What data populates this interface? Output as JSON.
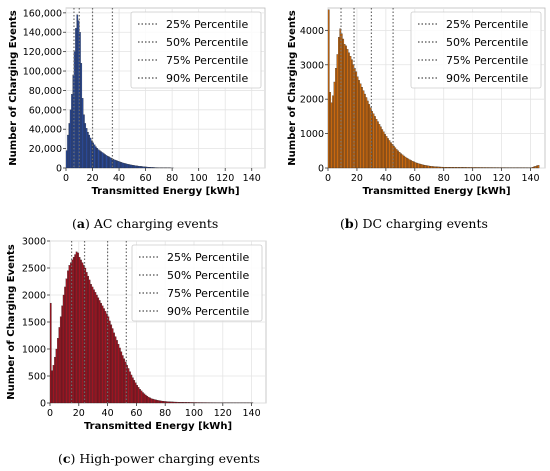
{
  "chart_data": [
    {
      "type": "bar",
      "caption_letter": "a",
      "caption_text": "AC charging events",
      "xlabel": "Transmitted Energy [kWh]",
      "ylabel": "Number of Charging Events",
      "xlim": [
        0,
        150
      ],
      "ylim": [
        0,
        165000
      ],
      "xticks": [
        "0",
        "20",
        "40",
        "60",
        "80",
        "100",
        "120",
        "140"
      ],
      "yticks": [
        "0",
        "20,000",
        "40,000",
        "60,000",
        "80,000",
        "100,000",
        "120,000",
        "140,000",
        "160,000"
      ],
      "ytick_values": [
        0,
        20000,
        40000,
        60000,
        80000,
        100000,
        120000,
        140000,
        160000
      ],
      "xtick_values": [
        0,
        20,
        40,
        60,
        80,
        100,
        120,
        140
      ],
      "color": "#2a4a9a",
      "grid": true,
      "legend_position": "top-right",
      "percentiles": [
        {
          "label": "25% Percentile",
          "value": 6
        },
        {
          "label": "50% Percentile",
          "value": 10
        },
        {
          "label": "75% Percentile",
          "value": 20
        },
        {
          "label": "90% Percentile",
          "value": 35
        }
      ],
      "bins": [
        {
          "x": 0,
          "y": 18000
        },
        {
          "x": 1,
          "y": 34000
        },
        {
          "x": 2,
          "y": 46000
        },
        {
          "x": 3,
          "y": 60000
        },
        {
          "x": 4,
          "y": 76000
        },
        {
          "x": 5,
          "y": 96000
        },
        {
          "x": 6,
          "y": 120000
        },
        {
          "x": 7,
          "y": 144000
        },
        {
          "x": 8,
          "y": 158000
        },
        {
          "x": 9,
          "y": 152000
        },
        {
          "x": 10,
          "y": 140000
        },
        {
          "x": 11,
          "y": 108000
        },
        {
          "x": 12,
          "y": 72000
        },
        {
          "x": 13,
          "y": 55000
        },
        {
          "x": 14,
          "y": 46000
        },
        {
          "x": 15,
          "y": 41000
        },
        {
          "x": 16,
          "y": 37000
        },
        {
          "x": 17,
          "y": 34000
        },
        {
          "x": 18,
          "y": 31000
        },
        {
          "x": 19,
          "y": 28000
        },
        {
          "x": 20,
          "y": 26000
        },
        {
          "x": 22,
          "y": 22000
        },
        {
          "x": 24,
          "y": 19000
        },
        {
          "x": 26,
          "y": 17000
        },
        {
          "x": 28,
          "y": 15000
        },
        {
          "x": 30,
          "y": 13000
        },
        {
          "x": 32,
          "y": 11500
        },
        {
          "x": 34,
          "y": 10000
        },
        {
          "x": 36,
          "y": 8500
        },
        {
          "x": 38,
          "y": 7500
        },
        {
          "x": 40,
          "y": 6500
        },
        {
          "x": 42,
          "y": 5500
        },
        {
          "x": 44,
          "y": 4700
        },
        {
          "x": 46,
          "y": 4000
        },
        {
          "x": 48,
          "y": 3400
        },
        {
          "x": 50,
          "y": 2900
        },
        {
          "x": 52,
          "y": 2400
        },
        {
          "x": 54,
          "y": 2000
        },
        {
          "x": 56,
          "y": 1700
        },
        {
          "x": 58,
          "y": 1400
        },
        {
          "x": 60,
          "y": 1100
        },
        {
          "x": 62,
          "y": 900
        },
        {
          "x": 64,
          "y": 700
        },
        {
          "x": 66,
          "y": 550
        },
        {
          "x": 68,
          "y": 420
        },
        {
          "x": 70,
          "y": 320
        },
        {
          "x": 72,
          "y": 250
        },
        {
          "x": 74,
          "y": 200
        },
        {
          "x": 76,
          "y": 160
        },
        {
          "x": 78,
          "y": 130
        },
        {
          "x": 80,
          "y": 100
        }
      ],
      "bin_width": 1
    },
    {
      "type": "bar",
      "caption_letter": "b",
      "caption_text": "DC charging events",
      "xlabel": "Transmitted Energy [kWh]",
      "ylabel": "Number of Charging Events",
      "xlim": [
        0,
        150
      ],
      "ylim": [
        0,
        4650
      ],
      "xticks": [
        "0",
        "20",
        "40",
        "60",
        "80",
        "100",
        "120",
        "140"
      ],
      "yticks": [
        "0",
        "1000",
        "2000",
        "3000",
        "4000"
      ],
      "ytick_values": [
        0,
        1000,
        2000,
        3000,
        4000
      ],
      "xtick_values": [
        0,
        20,
        40,
        60,
        80,
        100,
        120,
        140
      ],
      "color": "#c8680f",
      "grid": true,
      "legend_position": "top-right",
      "percentiles": [
        {
          "label": "25% Percentile",
          "value": 9
        },
        {
          "label": "50% Percentile",
          "value": 18
        },
        {
          "label": "75% Percentile",
          "value": 30
        },
        {
          "label": "90% Percentile",
          "value": 45
        }
      ],
      "bins": [
        {
          "x": 0,
          "y": 4600
        },
        {
          "x": 1,
          "y": 2200
        },
        {
          "x": 2,
          "y": 1900
        },
        {
          "x": 3,
          "y": 2100
        },
        {
          "x": 4,
          "y": 2500
        },
        {
          "x": 5,
          "y": 2900
        },
        {
          "x": 6,
          "y": 3300
        },
        {
          "x": 7,
          "y": 3800
        },
        {
          "x": 8,
          "y": 4050
        },
        {
          "x": 9,
          "y": 3900
        },
        {
          "x": 10,
          "y": 3750
        },
        {
          "x": 11,
          "y": 3600
        },
        {
          "x": 12,
          "y": 3550
        },
        {
          "x": 13,
          "y": 3450
        },
        {
          "x": 14,
          "y": 3350
        },
        {
          "x": 15,
          "y": 3250
        },
        {
          "x": 16,
          "y": 3150
        },
        {
          "x": 17,
          "y": 3000
        },
        {
          "x": 18,
          "y": 2900
        },
        {
          "x": 19,
          "y": 2800
        },
        {
          "x": 20,
          "y": 2650
        },
        {
          "x": 21,
          "y": 2550
        },
        {
          "x": 22,
          "y": 2450
        },
        {
          "x": 23,
          "y": 2350
        },
        {
          "x": 24,
          "y": 2250
        },
        {
          "x": 25,
          "y": 2150
        },
        {
          "x": 26,
          "y": 2050
        },
        {
          "x": 27,
          "y": 1950
        },
        {
          "x": 28,
          "y": 1850
        },
        {
          "x": 29,
          "y": 1750
        },
        {
          "x": 30,
          "y": 1650
        },
        {
          "x": 31,
          "y": 1580
        },
        {
          "x": 32,
          "y": 1500
        },
        {
          "x": 33,
          "y": 1420
        },
        {
          "x": 34,
          "y": 1350
        },
        {
          "x": 35,
          "y": 1270
        },
        {
          "x": 36,
          "y": 1200
        },
        {
          "x": 37,
          "y": 1120
        },
        {
          "x": 38,
          "y": 1050
        },
        {
          "x": 39,
          "y": 980
        },
        {
          "x": 40,
          "y": 920
        },
        {
          "x": 41,
          "y": 860
        },
        {
          "x": 42,
          "y": 800
        },
        {
          "x": 43,
          "y": 740
        },
        {
          "x": 44,
          "y": 690
        },
        {
          "x": 45,
          "y": 640
        },
        {
          "x": 46,
          "y": 590
        },
        {
          "x": 47,
          "y": 540
        },
        {
          "x": 48,
          "y": 500
        },
        {
          "x": 49,
          "y": 460
        },
        {
          "x": 50,
          "y": 420
        },
        {
          "x": 52,
          "y": 350
        },
        {
          "x": 54,
          "y": 290
        },
        {
          "x": 56,
          "y": 240
        },
        {
          "x": 58,
          "y": 200
        },
        {
          "x": 60,
          "y": 160
        },
        {
          "x": 62,
          "y": 130
        },
        {
          "x": 64,
          "y": 105
        },
        {
          "x": 66,
          "y": 85
        },
        {
          "x": 68,
          "y": 70
        },
        {
          "x": 70,
          "y": 55
        },
        {
          "x": 72,
          "y": 45
        },
        {
          "x": 74,
          "y": 38
        },
        {
          "x": 76,
          "y": 32
        },
        {
          "x": 78,
          "y": 28
        },
        {
          "x": 80,
          "y": 25
        },
        {
          "x": 85,
          "y": 22
        },
        {
          "x": 90,
          "y": 20
        },
        {
          "x": 95,
          "y": 18
        },
        {
          "x": 100,
          "y": 17
        },
        {
          "x": 105,
          "y": 16
        },
        {
          "x": 110,
          "y": 15
        },
        {
          "x": 115,
          "y": 14
        },
        {
          "x": 120,
          "y": 13
        },
        {
          "x": 125,
          "y": 12
        },
        {
          "x": 130,
          "y": 12
        },
        {
          "x": 135,
          "y": 12
        },
        {
          "x": 140,
          "y": 11
        },
        {
          "x": 145,
          "y": 80
        }
      ],
      "bin_width": 1
    },
    {
      "type": "bar",
      "caption_letter": "c",
      "caption_text": "High-power charging events",
      "xlabel": "Transmitted Energy [kWh]",
      "ylabel": "Number of Charging Events",
      "xlim": [
        0,
        150
      ],
      "ylim": [
        0,
        3000
      ],
      "xticks": [
        "0",
        "20",
        "40",
        "60",
        "80",
        "100",
        "120",
        "140"
      ],
      "yticks": [
        "0",
        "500",
        "1000",
        "1500",
        "2000",
        "2500",
        "3000"
      ],
      "ytick_values": [
        0,
        500,
        1000,
        1500,
        2000,
        2500,
        3000
      ],
      "xtick_values": [
        0,
        20,
        40,
        60,
        80,
        100,
        120,
        140
      ],
      "color": "#a01422",
      "grid": true,
      "legend_position": "top-right",
      "percentiles": [
        {
          "label": "25% Percentile",
          "value": 15
        },
        {
          "label": "50% Percentile",
          "value": 24
        },
        {
          "label": "75% Percentile",
          "value": 40
        },
        {
          "label": "90% Percentile",
          "value": 53
        }
      ],
      "bins": [
        {
          "x": 0,
          "y": 1850
        },
        {
          "x": 1,
          "y": 600
        },
        {
          "x": 2,
          "y": 700
        },
        {
          "x": 3,
          "y": 850
        },
        {
          "x": 4,
          "y": 1000
        },
        {
          "x": 5,
          "y": 1200
        },
        {
          "x": 6,
          "y": 1400
        },
        {
          "x": 7,
          "y": 1600
        },
        {
          "x": 8,
          "y": 1800
        },
        {
          "x": 9,
          "y": 2000
        },
        {
          "x": 10,
          "y": 2150
        },
        {
          "x": 11,
          "y": 2300
        },
        {
          "x": 12,
          "y": 2450
        },
        {
          "x": 13,
          "y": 2550
        },
        {
          "x": 14,
          "y": 2600
        },
        {
          "x": 15,
          "y": 2650
        },
        {
          "x": 16,
          "y": 2700
        },
        {
          "x": 17,
          "y": 2750
        },
        {
          "x": 18,
          "y": 2800
        },
        {
          "x": 19,
          "y": 2780
        },
        {
          "x": 20,
          "y": 2700
        },
        {
          "x": 21,
          "y": 2650
        },
        {
          "x": 22,
          "y": 2600
        },
        {
          "x": 23,
          "y": 2550
        },
        {
          "x": 24,
          "y": 2500
        },
        {
          "x": 25,
          "y": 2420
        },
        {
          "x": 26,
          "y": 2350
        },
        {
          "x": 27,
          "y": 2280
        },
        {
          "x": 28,
          "y": 2200
        },
        {
          "x": 29,
          "y": 2150
        },
        {
          "x": 30,
          "y": 2100
        },
        {
          "x": 31,
          "y": 2050
        },
        {
          "x": 32,
          "y": 2000
        },
        {
          "x": 33,
          "y": 1950
        },
        {
          "x": 34,
          "y": 1900
        },
        {
          "x": 35,
          "y": 1850
        },
        {
          "x": 36,
          "y": 1800
        },
        {
          "x": 37,
          "y": 1750
        },
        {
          "x": 38,
          "y": 1700
        },
        {
          "x": 39,
          "y": 1650
        },
        {
          "x": 40,
          "y": 1600
        },
        {
          "x": 41,
          "y": 1520
        },
        {
          "x": 42,
          "y": 1450
        },
        {
          "x": 43,
          "y": 1380
        },
        {
          "x": 44,
          "y": 1300
        },
        {
          "x": 45,
          "y": 1230
        },
        {
          "x": 46,
          "y": 1160
        },
        {
          "x": 47,
          "y": 1090
        },
        {
          "x": 48,
          "y": 1020
        },
        {
          "x": 49,
          "y": 950
        },
        {
          "x": 50,
          "y": 880
        },
        {
          "x": 51,
          "y": 820
        },
        {
          "x": 52,
          "y": 760
        },
        {
          "x": 53,
          "y": 700
        },
        {
          "x": 54,
          "y": 640
        },
        {
          "x": 55,
          "y": 580
        },
        {
          "x": 56,
          "y": 520
        },
        {
          "x": 57,
          "y": 470
        },
        {
          "x": 58,
          "y": 420
        },
        {
          "x": 59,
          "y": 375
        },
        {
          "x": 60,
          "y": 330
        },
        {
          "x": 61,
          "y": 290
        },
        {
          "x": 62,
          "y": 255
        },
        {
          "x": 63,
          "y": 225
        },
        {
          "x": 64,
          "y": 195
        },
        {
          "x": 65,
          "y": 170
        },
        {
          "x": 66,
          "y": 148
        },
        {
          "x": 67,
          "y": 128
        },
        {
          "x": 68,
          "y": 110
        },
        {
          "x": 69,
          "y": 95
        },
        {
          "x": 70,
          "y": 82
        },
        {
          "x": 72,
          "y": 65
        },
        {
          "x": 74,
          "y": 52
        },
        {
          "x": 76,
          "y": 42
        },
        {
          "x": 78,
          "y": 34
        },
        {
          "x": 80,
          "y": 28
        },
        {
          "x": 85,
          "y": 20
        },
        {
          "x": 90,
          "y": 15
        },
        {
          "x": 95,
          "y": 12
        },
        {
          "x": 100,
          "y": 10
        },
        {
          "x": 110,
          "y": 8
        },
        {
          "x": 120,
          "y": 6
        },
        {
          "x": 130,
          "y": 5
        },
        {
          "x": 140,
          "y": 4
        }
      ],
      "bin_width": 1
    }
  ]
}
